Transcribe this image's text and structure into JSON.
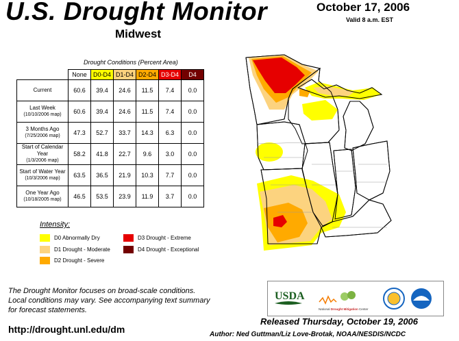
{
  "header": {
    "title": "U.S. Drought Monitor",
    "region": "Midwest",
    "date": "October 17, 2006",
    "valid": "Valid 8 a.m. EST"
  },
  "table": {
    "caption": "Drought Conditions (Percent Area)",
    "columns": [
      "None",
      "D0-D4",
      "D1-D4",
      "D2-D4",
      "D3-D4",
      "D4"
    ],
    "rows": [
      {
        "label": "Current",
        "sublabel": "",
        "values": [
          "60.6",
          "39.4",
          "24.6",
          "11.5",
          "7.4",
          "0.0"
        ]
      },
      {
        "label": "Last Week",
        "sublabel": "(10/10/2006 map)",
        "values": [
          "60.6",
          "39.4",
          "24.6",
          "11.5",
          "7.4",
          "0.0"
        ]
      },
      {
        "label": "3 Months Ago",
        "sublabel": "(7/25/2006 map)",
        "values": [
          "47.3",
          "52.7",
          "33.7",
          "14.3",
          "6.3",
          "0.0"
        ]
      },
      {
        "label": "Start of Calendar Year",
        "sublabel": "(1/3/2006 map)",
        "values": [
          "58.2",
          "41.8",
          "22.7",
          "9.6",
          "3.0",
          "0.0"
        ]
      },
      {
        "label": "Start of Water Year",
        "sublabel": "(10/3/2006 map)",
        "values": [
          "63.5",
          "36.5",
          "21.9",
          "10.3",
          "7.7",
          "0.0"
        ]
      },
      {
        "label": "One Year Ago",
        "sublabel": "(10/18/2005 map)",
        "values": [
          "46.5",
          "53.5",
          "23.9",
          "11.9",
          "3.7",
          "0.0"
        ]
      }
    ]
  },
  "legend": {
    "title": "Intensity:",
    "items": [
      {
        "label": "D0 Abnormally Dry",
        "color": "#ffff00"
      },
      {
        "label": "D1 Drought - Moderate",
        "color": "#fcd37f"
      },
      {
        "label": "D2 Drought - Severe",
        "color": "#ffaa00"
      },
      {
        "label": "D3 Drought - Extreme",
        "color": "#e60000"
      },
      {
        "label": "D4 Drought - Exceptional",
        "color": "#730000"
      }
    ]
  },
  "footer": {
    "note_lines": [
      "The Drought Monitor focuses on broad-scale conditions.",
      "Local conditions may vary. See accompanying text summary",
      "for forecast statements."
    ],
    "url": "http://drought.unl.edu/dm",
    "released": "Released Thursday, October 19, 2006",
    "author": "Author: Ned Guttman/Liz Love-Brotak, NOAA/NESDIS/NCDC"
  },
  "logos": {
    "usda": "USDA",
    "ndmc_prefix": "National ",
    "ndmc_main": "Drought Mitigation",
    "ndmc_suffix": " Center"
  }
}
